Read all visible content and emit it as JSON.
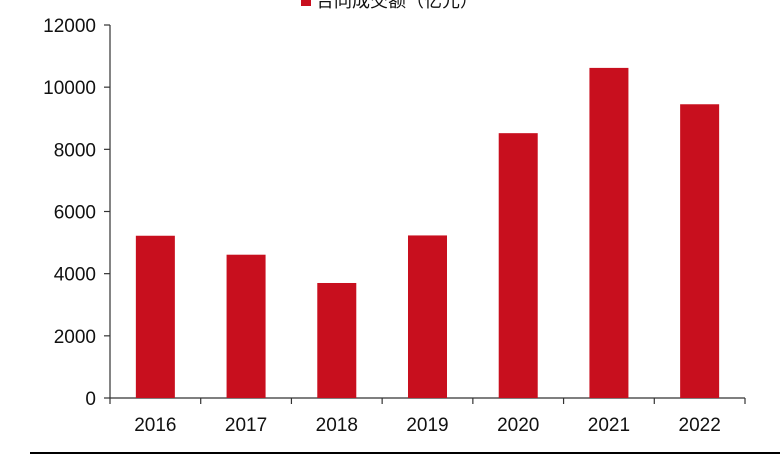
{
  "chart_data": {
    "type": "bar",
    "legend": "合同成交额（亿元）",
    "legend_position": "top-center",
    "categories": [
      "2016",
      "2017",
      "2018",
      "2019",
      "2020",
      "2021",
      "2022"
    ],
    "series": [
      {
        "name": "合同成交额（亿元）",
        "values": [
          5220,
          4610,
          3700,
          5230,
          8520,
          10620,
          9450
        ]
      }
    ],
    "ylim": [
      0,
      12000
    ],
    "yticks": [
      "0",
      "2000",
      "4000",
      "6000",
      "8000",
      "10000",
      "12000"
    ],
    "grid": false,
    "bar_color": "#C80F1E"
  }
}
